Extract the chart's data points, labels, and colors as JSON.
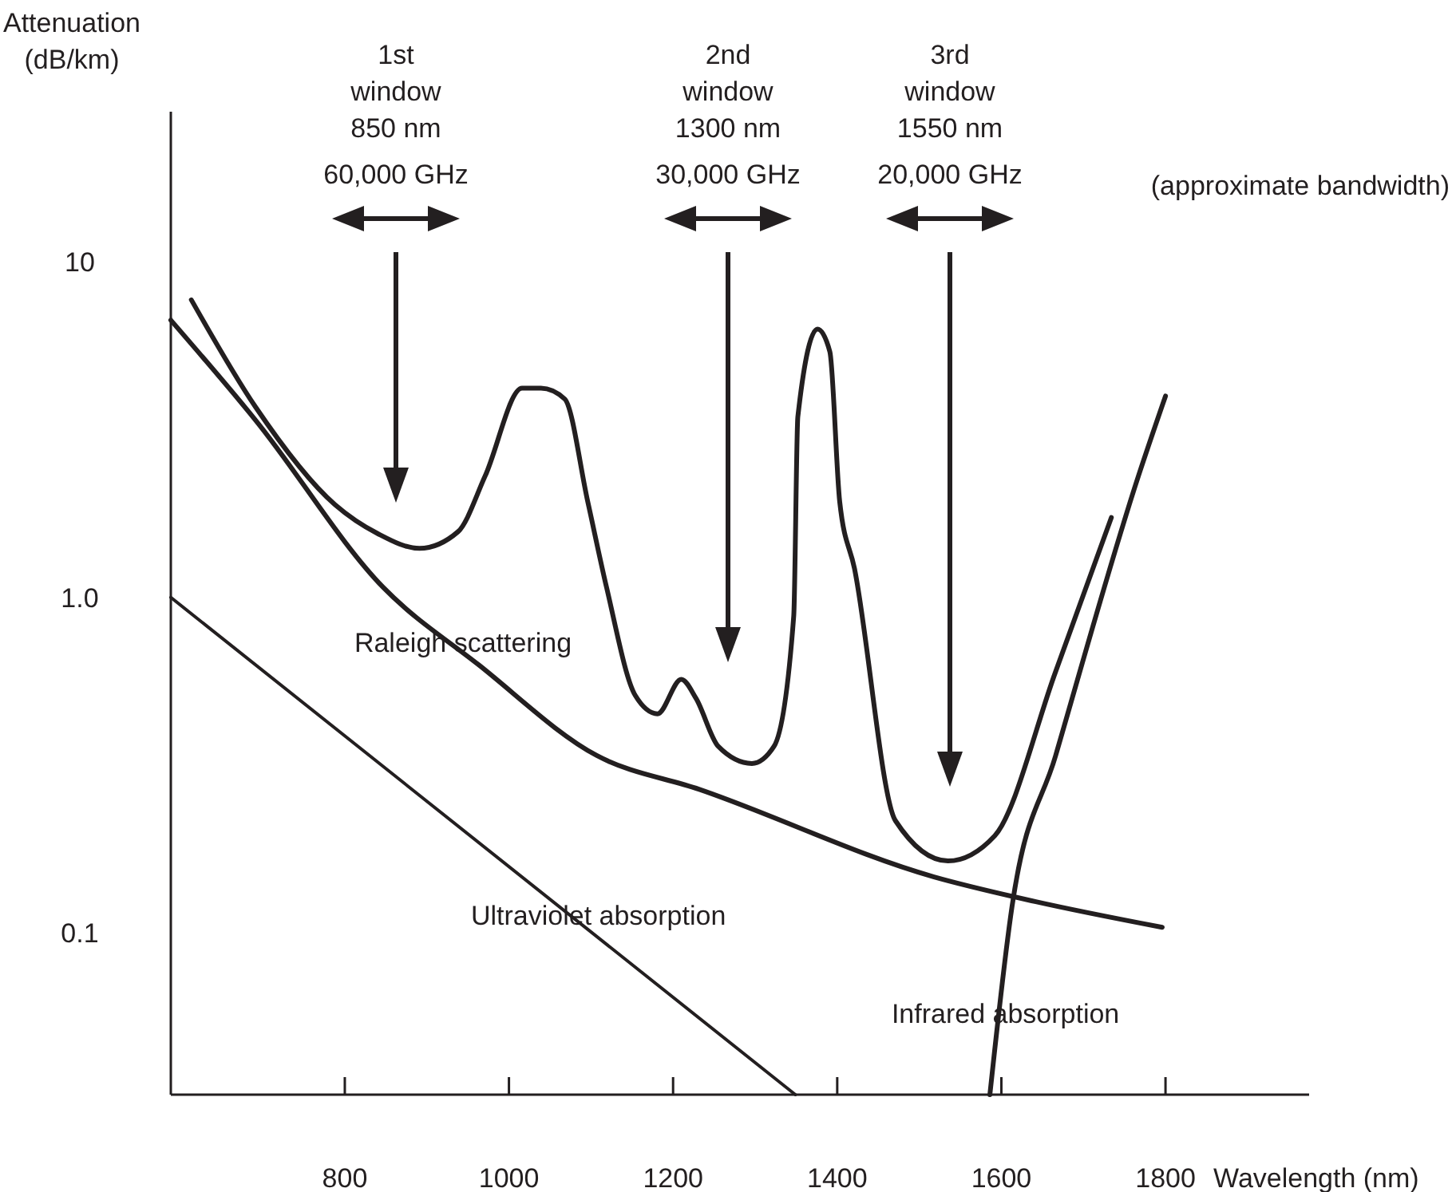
{
  "chart_data": {
    "type": "line",
    "xlabel": "Wavelength (nm)",
    "ylabel": "Attenuation\n(dB/km)",
    "log": "y",
    "grid": false,
    "marker": "none",
    "line_style": "solid",
    "xlim": [
      588,
      1975
    ],
    "ylim": [
      0.033,
      28
    ],
    "xticks": [
      800,
      1000,
      1200,
      1400,
      1600,
      1800
    ],
    "yticks": [
      10,
      {
        "value": 1,
        "label": "1.0"
      },
      {
        "value": 0.1,
        "label": "0.1"
      }
    ],
    "series": [
      {
        "color": "#231f20",
        "x": [
          613,
          691,
          788,
          840,
          891,
          938,
          971,
          1016,
          1039,
          1068,
          1096,
          1119,
          1154,
          1181,
          1210,
          1228,
          1255,
          1296,
          1323,
          1347,
          1352,
          1376,
          1391,
          1403,
          1421,
          1471,
          1535,
          1592,
          1666,
          1734
        ],
        "values": [
          7.7,
          3.7,
          1.89,
          1.55,
          1.4,
          1.57,
          2.3,
          4.2,
          4.2,
          3.9,
          1.93,
          1.07,
          0.51,
          0.45,
          0.57,
          0.5,
          0.36,
          0.32,
          0.36,
          0.88,
          3.45,
          6.3,
          5.4,
          1.93,
          1.22,
          0.216,
          0.164,
          0.195,
          0.6,
          1.73
        ]
      },
      {
        "color": "#231f20",
        "x": [
          588,
          691,
          847,
          963,
          1107,
          1232,
          1518,
          1642,
          1796
        ],
        "values": [
          6.7,
          3.38,
          1.07,
          0.63,
          0.338,
          0.268,
          0.147,
          0.124,
          0.104
        ]
      },
      {
        "color": "#231f20",
        "x": [
          588,
          1349
        ],
        "values": [
          1.0,
          0.033
        ]
      },
      {
        "color": "#231f20",
        "x": [
          1586,
          1613,
          1666,
          1767,
          1800
        ],
        "values": [
          0.033,
          0.12,
          0.337,
          2.3,
          3.98
        ]
      }
    ],
    "annotations": [
      "1st\nwindow\n850 nm\n60,000 GHz",
      "2nd\nwindow\n1300 nm\n30,000 GHz",
      "3rd\nwindow\n1550 nm\n20,000 GHz",
      "(approximate bandwidth)",
      {
        "text": "Raleigh scattering",
        "x": 944,
        "y": 0.63
      },
      {
        "text": "Ultraviolet absorption",
        "x": 1109,
        "y": 0.097
      },
      {
        "text": "Infrared absorption",
        "x": 1605,
        "y": 0.063
      }
    ]
  }
}
